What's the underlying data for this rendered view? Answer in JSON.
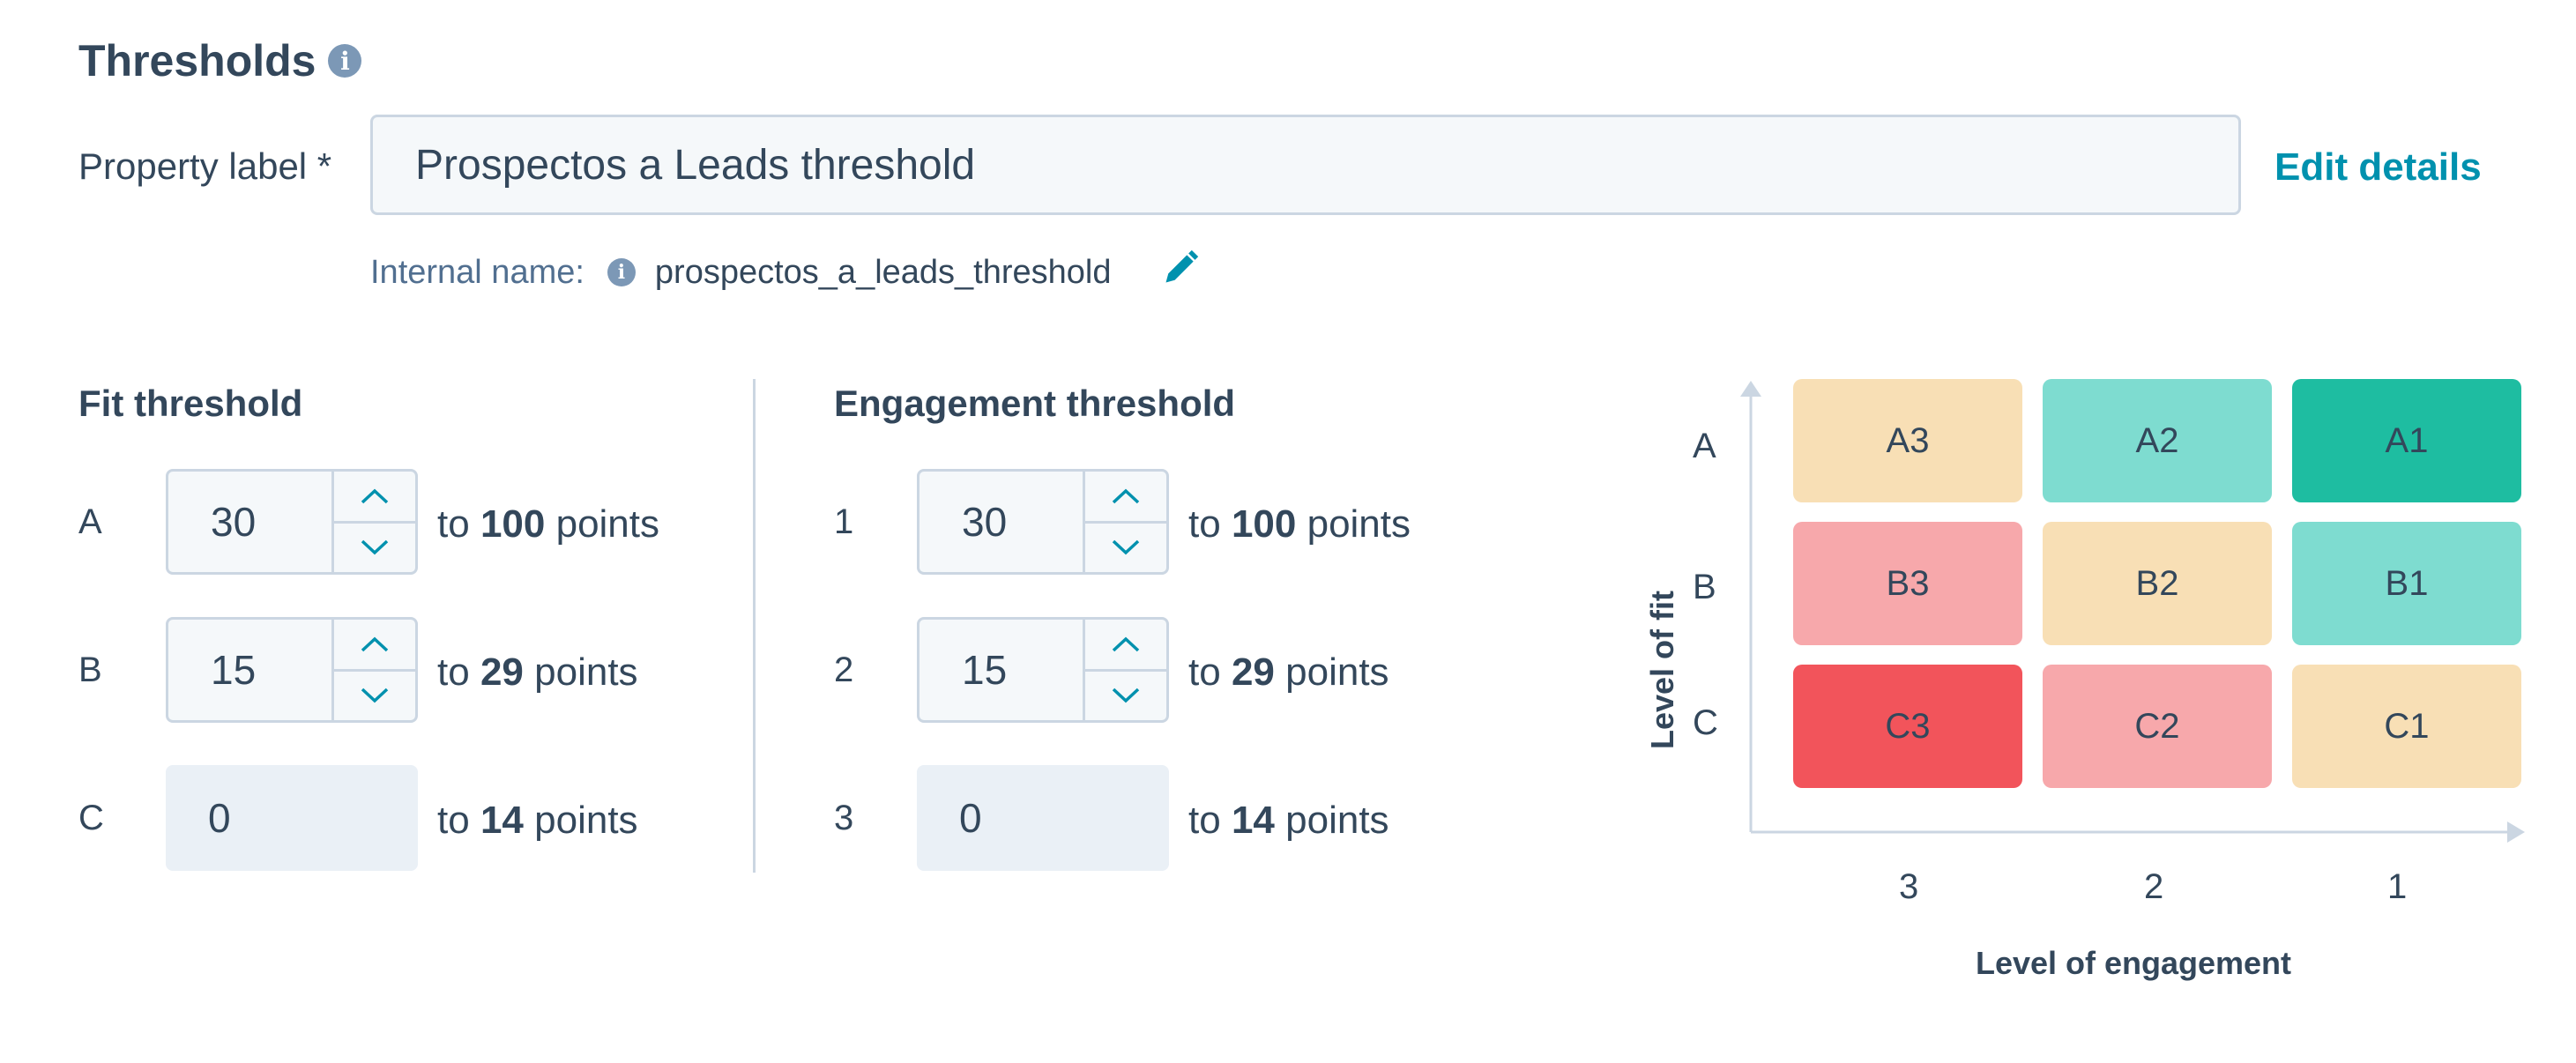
{
  "header": {
    "title": "Thresholds"
  },
  "property": {
    "label": "Property label *",
    "value": "Prospectos a Leads threshold",
    "edit_label": "Edit details",
    "internal_label": "Internal name:",
    "internal_value": "prospectos_a_leads_threshold"
  },
  "fit": {
    "title": "Fit threshold",
    "rows": [
      {
        "letter": "A",
        "value": "30",
        "to": "to",
        "max": "100",
        "unit": "points"
      },
      {
        "letter": "B",
        "value": "15",
        "to": "to",
        "max": "29",
        "unit": "points"
      },
      {
        "letter": "C",
        "value": "0",
        "to": "to",
        "max": "14",
        "unit": "points"
      }
    ]
  },
  "engagement": {
    "title": "Engagement threshold",
    "rows": [
      {
        "letter": "1",
        "value": "30",
        "to": "to",
        "max": "100",
        "unit": "points"
      },
      {
        "letter": "2",
        "value": "15",
        "to": "to",
        "max": "29",
        "unit": "points"
      },
      {
        "letter": "3",
        "value": "0",
        "to": "to",
        "max": "14",
        "unit": "points"
      }
    ]
  },
  "matrix": {
    "y_title": "Level of fit",
    "x_title": "Level of engagement",
    "y_labels": [
      "A",
      "B",
      "C"
    ],
    "x_labels": [
      "3",
      "2",
      "1"
    ],
    "cells": [
      [
        "A3",
        "A2",
        "A1"
      ],
      [
        "B3",
        "B2",
        "B1"
      ],
      [
        "C3",
        "C2",
        "C1"
      ]
    ],
    "colors": {
      "yellow": "#f8dfb5",
      "teal_light": "#7edcd0",
      "teal_dark": "#1ebda1",
      "pink": "#f7a8ab",
      "red": "#f2545b"
    }
  },
  "colors": {
    "link": "#0091ae",
    "text": "#33475b",
    "border": "#cbd6e2"
  }
}
